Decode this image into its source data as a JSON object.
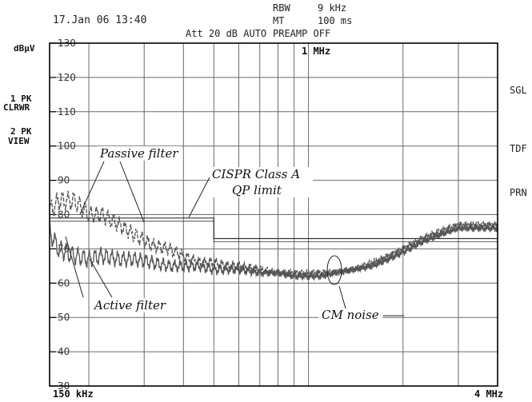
{
  "header": {
    "datetime": "17.Jan 06 13:40",
    "att": "Att 20 dB AUTO",
    "rbw_label": "RBW",
    "rbw_value": "9 kHz",
    "mt_label": "MT",
    "mt_value": "100 ms",
    "preamp": "PREAMP OFF"
  },
  "left_panel": {
    "unit": "dBμV",
    "trace1_line1": "1 PK",
    "trace1_line2": "CLRWR",
    "trace2_line1": "2 PK",
    "trace2_line2": "VIEW"
  },
  "right_softkeys": [
    "SGL",
    "TDF",
    "PRN"
  ],
  "freq_labels": {
    "start": "150 kHz",
    "mid": "1 MHz",
    "stop": "4 MHz"
  },
  "annotations": {
    "passive": "Passive filter",
    "cispr_line1": "CISPR Class A",
    "cispr_line2": "QP limit",
    "active": "Active filter",
    "cm": "CM noise"
  },
  "colors": {
    "grid": "#6a6a6a",
    "frame": "#000000",
    "trace": "#555555",
    "limit": "#333333"
  },
  "chart_data": {
    "type": "line",
    "xscale": "log",
    "xlim": [
      150000,
      4000000
    ],
    "ylim": [
      30,
      130
    ],
    "yunit": "dBμV",
    "yticks": [
      130,
      120,
      110,
      100,
      90,
      80,
      70,
      60,
      50,
      40,
      30
    ],
    "series": [
      {
        "x": [
          150000,
          160000,
          180000,
          200000,
          220000,
          250000,
          280000,
          320000,
          360000,
          400000,
          450000,
          500000,
          550000,
          600000,
          700000,
          800000,
          900000,
          1000000,
          1100000,
          1200000,
          1400000,
          1600000,
          1800000,
          2000000,
          2300000,
          2600000,
          3000000,
          3500000,
          4000000
        ],
        "y": [
          81,
          84,
          84,
          80,
          80,
          77,
          74,
          71,
          70,
          68,
          66,
          66,
          65,
          65,
          64,
          63,
          63,
          63,
          63,
          63,
          64,
          66,
          68,
          70,
          73,
          75,
          77,
          77,
          77
        ]
      },
      {
        "x": [
          150000,
          160000,
          180000,
          200000,
          220000,
          250000,
          280000,
          320000,
          360000,
          400000,
          450000,
          500000,
          550000,
          600000,
          700000,
          800000,
          900000,
          1000000,
          1100000,
          1200000,
          1400000,
          1600000,
          1800000,
          2000000,
          2300000,
          2600000,
          3000000,
          3500000,
          4000000
        ],
        "y": [
          75,
          70,
          68,
          67,
          68,
          67,
          67,
          66,
          65,
          65,
          65,
          64,
          64,
          64,
          63,
          63,
          62,
          62,
          62,
          63,
          64,
          65,
          67,
          69,
          72,
          74,
          76,
          76,
          76
        ]
      }
    ],
    "limit": {
      "x": [
        150000,
        500000,
        500000,
        4000000
      ],
      "y": [
        79,
        79,
        73,
        73
      ]
    },
    "annotations": [
      "Passive filter",
      "CISPR Class A",
      "QP limit",
      "Active filter",
      "CM noise"
    ]
  }
}
